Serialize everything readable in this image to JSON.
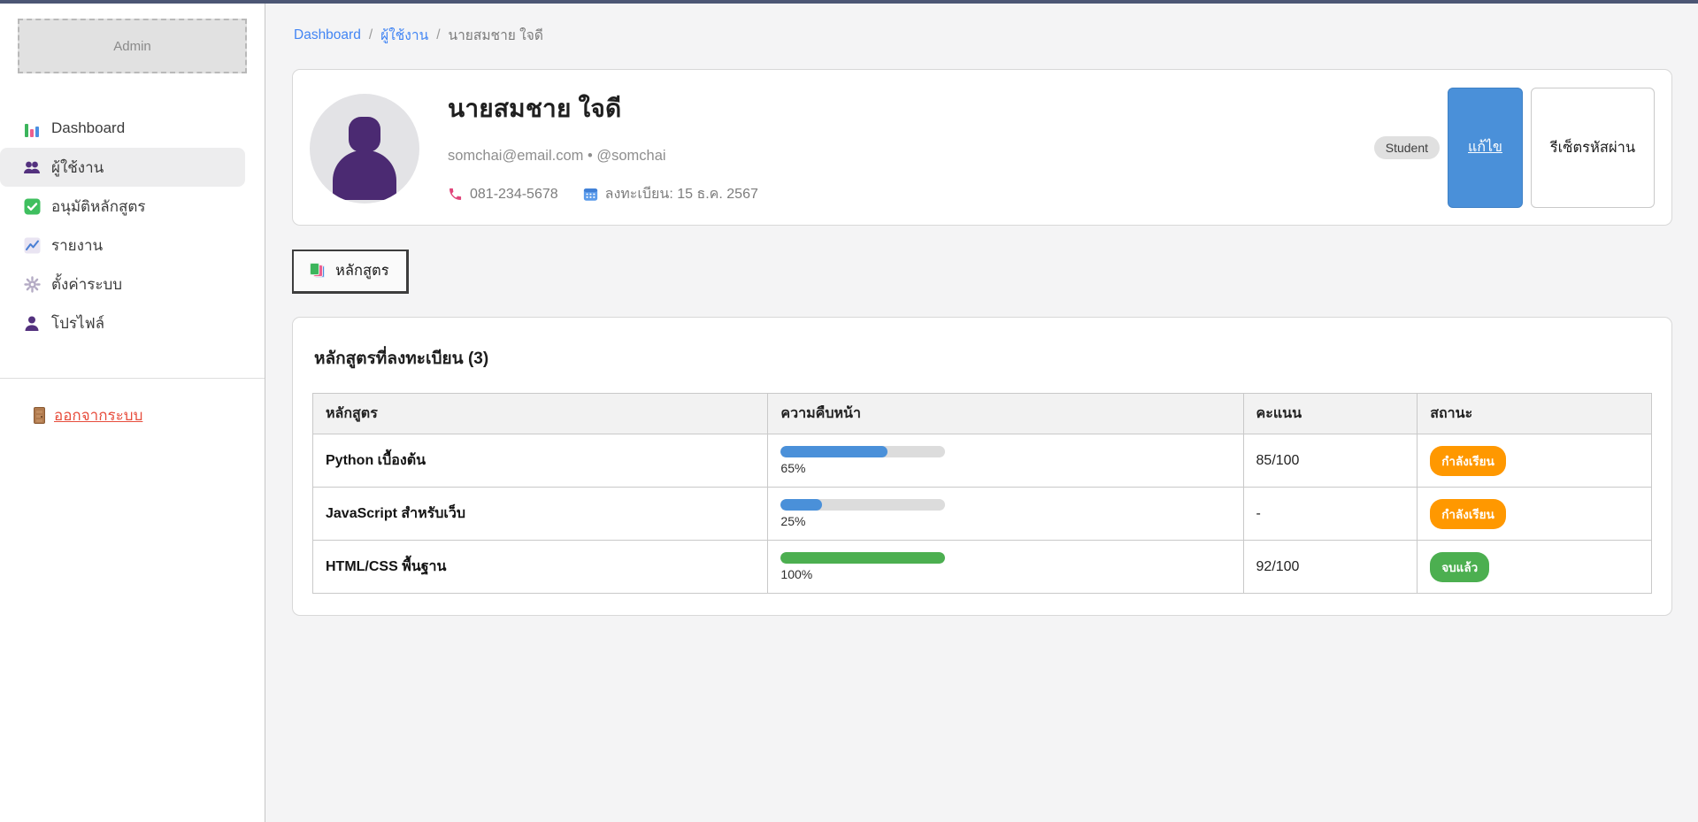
{
  "app": {
    "topbar_color": "#4c5674"
  },
  "sidebar": {
    "logo_label": "Admin",
    "items": [
      {
        "label": "Dashboard",
        "icon": "dashboard-icon"
      },
      {
        "label": "ผู้ใช้งาน",
        "icon": "users-icon",
        "active": true
      },
      {
        "label": "อนุมัติหลักสูตร",
        "icon": "approve-courses-icon"
      },
      {
        "label": "รายงาน",
        "icon": "reports-icon"
      },
      {
        "label": "ตั้งค่าระบบ",
        "icon": "settings-icon"
      },
      {
        "label": "โปรไฟล์",
        "icon": "profile-icon"
      }
    ],
    "logout_label": "ออกจากระบบ"
  },
  "breadcrumb": {
    "separator": "/",
    "items": [
      "Dashboard",
      "ผู้ใช้งาน",
      "นายสมชาย ใจดี"
    ]
  },
  "profile": {
    "name": "นายสมชาย ใจดี",
    "email": "somchai@email.com",
    "dot_separator": "•",
    "handle": "@somchai",
    "phone": "081-234-5678",
    "registered": "ลงทะเบียน: 15 ธ.ค. 2567",
    "role_badge": "Student",
    "edit_button": "แก้ไข",
    "reset_password_button": "รีเซ็ตรหัสผ่าน"
  },
  "tabs": [
    {
      "label": "หลักสูตร",
      "icon": "books-icon",
      "active": true
    }
  ],
  "courses_card": {
    "title": "หลักสูตรที่ลงทะเบียน (3)",
    "table": {
      "headers": [
        "หลักสูตร",
        "ความคืบหน้า",
        "คะแนน",
        "สถานะ"
      ],
      "rows": [
        {
          "course": "Python เบื้องต้น",
          "progress": 65,
          "progress_label": "65%",
          "score": "85/100",
          "status": "กำลังเรียน",
          "status_type": "in-progress"
        },
        {
          "course": "JavaScript สำหรับเว็บ",
          "progress": 25,
          "progress_label": "25%",
          "score": "-",
          "status": "กำลังเรียน",
          "status_type": "in-progress"
        },
        {
          "course": "HTML/CSS พื้นฐาน",
          "progress": 100,
          "progress_label": "100%",
          "score": "92/100",
          "status": "จบแล้ว",
          "status_type": "completed"
        }
      ]
    }
  },
  "colors": {
    "topbar": "#4c5674",
    "link_blue": "#4285f4",
    "progress_blue": "#4a90d9",
    "progress_green": "#4caf50",
    "status_in_progress_orange": "#ff9800",
    "status_completed_green": "#4caf50",
    "logout_red": "#e74c3c",
    "edit_button_blue": "#4a90d9"
  }
}
